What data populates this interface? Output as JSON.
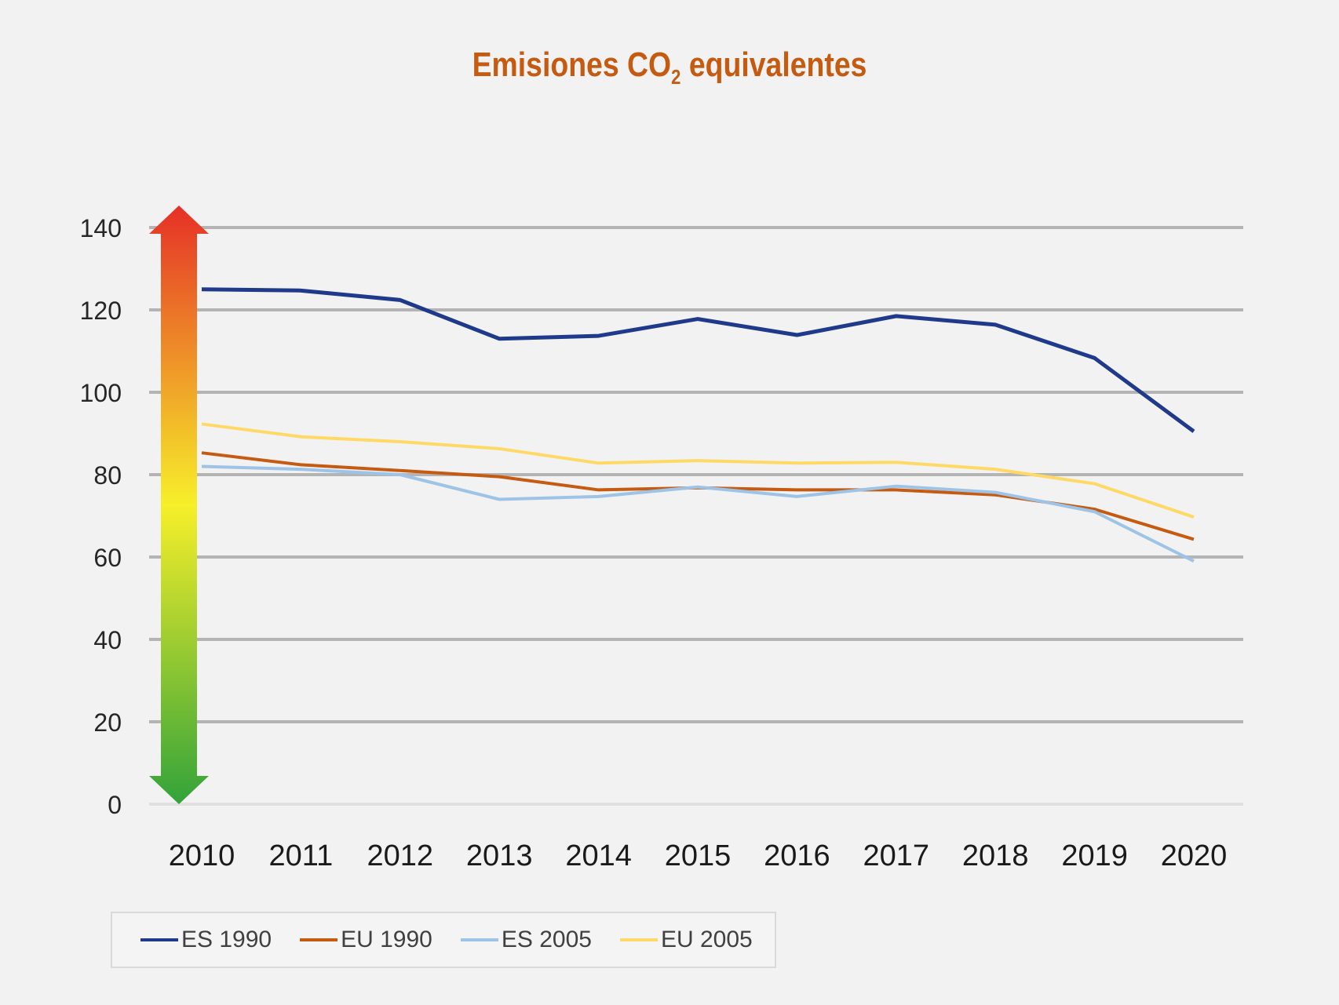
{
  "chart_data": {
    "type": "line",
    "title": "Emisiones CO",
    "title_subscript": "2",
    "title_suffix": " equivalentes",
    "xlabel": "",
    "ylabel": "",
    "categories": [
      "2010",
      "2011",
      "2012",
      "2013",
      "2014",
      "2015",
      "2016",
      "2017",
      "2018",
      "2019",
      "2020"
    ],
    "ylim": [
      0,
      140
    ],
    "yticks": [
      0,
      20,
      40,
      60,
      80,
      100,
      120,
      140
    ],
    "grid": true,
    "legend_position": "bottom-left",
    "series": [
      {
        "name": "ES 1990",
        "color": "#1f3a8a",
        "values": [
          125,
          124.7,
          122.4,
          113,
          113.7,
          117.8,
          113.9,
          118.5,
          116.4,
          108.3,
          90.5
        ]
      },
      {
        "name": "EU 1990",
        "color": "#c55a11",
        "values": [
          85.3,
          82.4,
          81,
          79.5,
          76.3,
          76.8,
          76.3,
          76.3,
          75.1,
          71.6,
          64.3
        ]
      },
      {
        "name": "ES 2005",
        "color": "#9dc3e6",
        "values": [
          82,
          81.3,
          80,
          74,
          74.7,
          77,
          74.7,
          77.2,
          75.7,
          71,
          59
        ]
      },
      {
        "name": "EU 2005",
        "color": "#ffd966",
        "values": [
          92.3,
          89.2,
          88,
          86.3,
          82.8,
          83.4,
          82.8,
          83,
          81.3,
          77.8,
          69.7
        ]
      }
    ],
    "annotation": {
      "type": "double-arrow",
      "gradient": [
        "#e53027",
        "#f7ef2a",
        "#33a33a"
      ]
    }
  }
}
